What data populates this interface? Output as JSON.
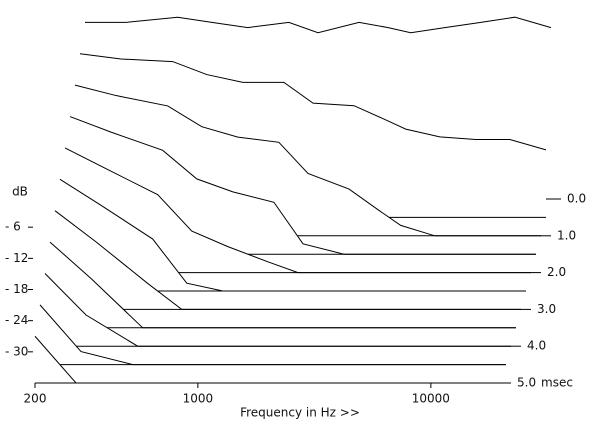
{
  "chart_data": {
    "type": "waterfall",
    "x_label": "Frequency in Hz >>",
    "z_label": "dB",
    "time_unit": "msec",
    "x_log": true,
    "x": [
      200,
      300,
      500,
      700,
      1000,
      1500,
      2000,
      3000,
      4000,
      5000,
      7000,
      10000,
      14000,
      20000
    ],
    "xlim": [
      200,
      20000
    ],
    "xticks": [
      200,
      1000,
      10000
    ],
    "zlim": [
      -36,
      0
    ],
    "zticks": [
      {
        "value": -6,
        "label": "- 6"
      },
      {
        "value": -12,
        "label": "- 12"
      },
      {
        "value": -18,
        "label": "- 18"
      },
      {
        "value": -24,
        "label": "- 24"
      },
      {
        "value": -30,
        "label": "- 30"
      }
    ],
    "tlim": [
      0,
      5
    ],
    "tticks": [
      {
        "value": 0,
        "label": "0.0"
      },
      {
        "value": 1,
        "label": "1.0"
      },
      {
        "value": 2,
        "label": "2.0"
      },
      {
        "value": 3,
        "label": "3.0"
      },
      {
        "value": 4,
        "label": "4.0"
      },
      {
        "value": 5,
        "label": "5.0"
      }
    ],
    "color": "#000000",
    "slices": [
      {
        "time": 0,
        "values": [
          -2,
          -2,
          -1,
          -2,
          -3,
          -2,
          -4,
          -2,
          -3,
          -4,
          -3,
          -2,
          -1,
          -3
        ]
      },
      {
        "time": 0.5,
        "values": [
          -4.5,
          -5.5,
          -6,
          -8.5,
          -10,
          -10,
          -14,
          -14.5,
          -17,
          -19,
          -20.5,
          -21,
          -21,
          -23
        ]
      },
      {
        "time": 1,
        "values": [
          -7,
          -9,
          -11,
          -15,
          -17,
          -18,
          -24,
          -27,
          -31,
          -34,
          -36,
          -36,
          -36,
          -36
        ]
      },
      {
        "time": 1.5,
        "values": [
          -9.5,
          -12.5,
          -16,
          -21.5,
          -24,
          -26,
          -34,
          -36,
          -36,
          -36,
          -36,
          -36,
          -36,
          -36
        ]
      },
      {
        "time": 2,
        "values": [
          -12,
          -16,
          -21,
          -28,
          -31,
          -34,
          -36,
          -36,
          -36,
          -36,
          -36,
          -36,
          -36,
          -36
        ]
      },
      {
        "time": 2.5,
        "values": [
          -14.5,
          -19.5,
          -26,
          -34.5,
          -36,
          -36,
          -36,
          -36,
          -36,
          -36,
          -36,
          -36,
          -36,
          -36
        ]
      },
      {
        "time": 3,
        "values": [
          -17,
          -23,
          -31,
          -36,
          -36,
          -36,
          -36,
          -36,
          -36,
          -36,
          -36,
          -36,
          -36,
          -36
        ]
      },
      {
        "time": 3.5,
        "values": [
          -19.5,
          -26.5,
          -36,
          -36,
          -36,
          -36,
          -36,
          -36,
          -36,
          -36,
          -36,
          -36,
          -36,
          -36
        ]
      },
      {
        "time": 4,
        "values": [
          -22,
          -30,
          -36,
          -36,
          -36,
          -36,
          -36,
          -36,
          -36,
          -36,
          -36,
          -36,
          -36,
          -36
        ]
      },
      {
        "time": 4.5,
        "values": [
          -24.5,
          -33.5,
          -36,
          -36,
          -36,
          -36,
          -36,
          -36,
          -36,
          -36,
          -36,
          -36,
          -36,
          -36
        ]
      },
      {
        "time": 5,
        "values": [
          -27,
          -36,
          -36,
          -36,
          -36,
          -36,
          -36,
          -36,
          -36,
          -36,
          -36,
          -36,
          -36,
          -36
        ]
      }
    ]
  }
}
